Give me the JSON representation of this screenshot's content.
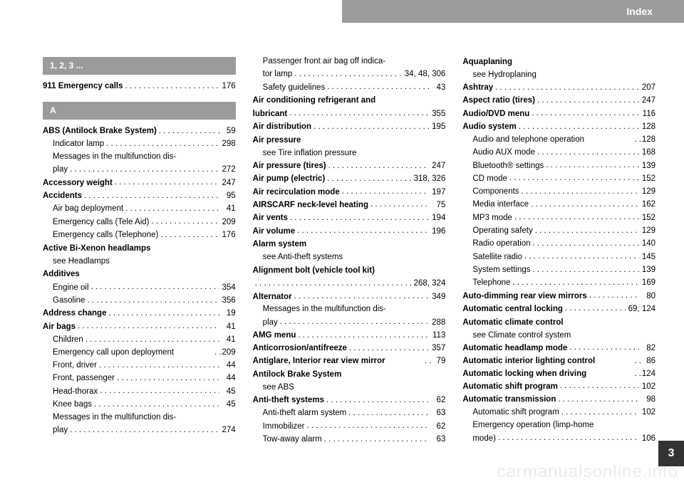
{
  "header": {
    "title": "Index"
  },
  "page_number": "3",
  "watermark": "carmanualsonline.info",
  "sections": {
    "numeric": {
      "title": "1, 2, 3 ..."
    },
    "A": {
      "title": "A"
    }
  },
  "col1": [
    {
      "type": "section",
      "key": "numeric"
    },
    {
      "type": "main",
      "label": "911 Emergency calls",
      "page": "176"
    },
    {
      "type": "gap"
    },
    {
      "type": "section",
      "key": "A"
    },
    {
      "type": "main",
      "label": "ABS (Antilock Brake System)",
      "page": "59"
    },
    {
      "type": "sub",
      "label": "Indicator lamp",
      "page": "298"
    },
    {
      "type": "subtext",
      "label": "Messages in the multifunction dis-"
    },
    {
      "type": "sub",
      "label": "play",
      "page": "272"
    },
    {
      "type": "main",
      "label": "Accessory weight",
      "page": "247"
    },
    {
      "type": "main",
      "label": "Accidents",
      "page": "95"
    },
    {
      "type": "sub",
      "label": "Air bag deployment",
      "page": "41"
    },
    {
      "type": "sub",
      "label": "Emergency calls (Tele Aid)",
      "page": "209"
    },
    {
      "type": "sub",
      "label": "Emergency calls (Telephone)",
      "page": "176"
    },
    {
      "type": "heading",
      "label": "Active Bi-Xenon headlamps"
    },
    {
      "type": "see",
      "label": "see Headlamps"
    },
    {
      "type": "heading",
      "label": "Additives"
    },
    {
      "type": "sub",
      "label": "Engine oil",
      "page": "354"
    },
    {
      "type": "sub",
      "label": "Gasoline",
      "page": "356"
    },
    {
      "type": "main",
      "label": "Address change",
      "page": "19"
    },
    {
      "type": "main",
      "label": "Air bags",
      "page": "41"
    },
    {
      "type": "sub",
      "label": "Children",
      "page": "41"
    },
    {
      "type": "sub",
      "label": "Emergency call upon deployment",
      "page": "209",
      "short": true
    },
    {
      "type": "sub",
      "label": "Front, driver",
      "page": "44"
    },
    {
      "type": "sub",
      "label": "Front, passenger",
      "page": "44"
    },
    {
      "type": "sub",
      "label": "Head-thorax",
      "page": "45"
    },
    {
      "type": "sub",
      "label": "Knee bags",
      "page": "45"
    },
    {
      "type": "subtext",
      "label": "Messages in the multifunction dis-"
    },
    {
      "type": "sub",
      "label": "play",
      "page": "274"
    }
  ],
  "col2": [
    {
      "type": "subtext",
      "label": "Passenger front air bag off indica-"
    },
    {
      "type": "sub",
      "label": "tor lamp",
      "page": "34, 48, 306"
    },
    {
      "type": "sub",
      "label": "Safety guidelines",
      "page": "43"
    },
    {
      "type": "heading",
      "label": "Air conditioning refrigerant and"
    },
    {
      "type": "main",
      "label": "lubricant",
      "page": "355"
    },
    {
      "type": "main",
      "label": "Air distribution",
      "page": "195"
    },
    {
      "type": "heading",
      "label": "Air pressure"
    },
    {
      "type": "see",
      "label": "see Tire inflation pressure"
    },
    {
      "type": "main",
      "label": "Air pressure (tires)",
      "page": "247"
    },
    {
      "type": "main",
      "label": "Air pump (electric)",
      "page": "318, 326"
    },
    {
      "type": "main",
      "label": "Air recirculation mode",
      "page": "197"
    },
    {
      "type": "main",
      "label": "AIRSCARF neck-level heating",
      "page": "75"
    },
    {
      "type": "main",
      "label": "Air vents",
      "page": "194"
    },
    {
      "type": "main",
      "label": "Air volume",
      "page": "196"
    },
    {
      "type": "heading",
      "label": "Alarm system"
    },
    {
      "type": "see",
      "label": "see Anti-theft systems"
    },
    {
      "type": "heading",
      "label": "Alignment bolt (vehicle tool kit)"
    },
    {
      "type": "contdots",
      "page": "268, 324"
    },
    {
      "type": "main",
      "label": "Alternator",
      "page": "349"
    },
    {
      "type": "subtext",
      "label": "Messages in the multifunction dis-"
    },
    {
      "type": "sub",
      "label": "play",
      "page": "288"
    },
    {
      "type": "main",
      "label": "AMG menu",
      "page": "113"
    },
    {
      "type": "main",
      "label": "Anticorrosion/antifreeze",
      "page": "357"
    },
    {
      "type": "main",
      "label": "Antiglare, Interior rear view mirror",
      "page": "79",
      "short": true
    },
    {
      "type": "heading",
      "label": "Antilock Brake System"
    },
    {
      "type": "see",
      "label": "see ABS"
    },
    {
      "type": "main",
      "label": "Anti-theft systems",
      "page": "62"
    },
    {
      "type": "sub",
      "label": "Anti-theft alarm system",
      "page": "63"
    },
    {
      "type": "sub",
      "label": "Immobilizer",
      "page": "62"
    },
    {
      "type": "sub",
      "label": "Tow-away alarm",
      "page": "63"
    }
  ],
  "col3": [
    {
      "type": "heading",
      "label": "Aquaplaning"
    },
    {
      "type": "see",
      "label": "see Hydroplaning"
    },
    {
      "type": "main",
      "label": "Ashtray",
      "page": "207"
    },
    {
      "type": "main",
      "label": "Aspect ratio (tires)",
      "page": "247"
    },
    {
      "type": "main",
      "label": "Audio/DVD menu",
      "page": "116"
    },
    {
      "type": "main",
      "label": "Audio system",
      "page": "128"
    },
    {
      "type": "sub",
      "label": "Audio and telephone operation",
      "page": "128",
      "short": true
    },
    {
      "type": "sub",
      "label": "Audio AUX mode",
      "page": "168"
    },
    {
      "type": "sub",
      "label": "Bluetooth® settings",
      "page": "139"
    },
    {
      "type": "sub",
      "label": "CD mode",
      "page": "152"
    },
    {
      "type": "sub",
      "label": "Components",
      "page": "129"
    },
    {
      "type": "sub",
      "label": "Media interface",
      "page": "162"
    },
    {
      "type": "sub",
      "label": "MP3 mode",
      "page": "152"
    },
    {
      "type": "sub",
      "label": "Operating safety",
      "page": "129"
    },
    {
      "type": "sub",
      "label": "Radio operation",
      "page": "140"
    },
    {
      "type": "sub",
      "label": "Satellite radio",
      "page": "145"
    },
    {
      "type": "sub",
      "label": "System settings",
      "page": "139"
    },
    {
      "type": "sub",
      "label": "Telephone",
      "page": "169"
    },
    {
      "type": "main",
      "label": "Auto-dimming rear view mirrors",
      "page": "80"
    },
    {
      "type": "main",
      "label": "Automatic central locking",
      "page": "69, 124"
    },
    {
      "type": "heading",
      "label": "Automatic climate control"
    },
    {
      "type": "see",
      "label": "see Climate control system"
    },
    {
      "type": "main",
      "label": "Automatic headlamp mode",
      "page": "82"
    },
    {
      "type": "main",
      "label": "Automatic interior lighting control",
      "page": "86",
      "short": true
    },
    {
      "type": "main",
      "label": "Automatic locking when driving",
      "page": "124",
      "short": true
    },
    {
      "type": "main",
      "label": "Automatic shift program",
      "page": "102"
    },
    {
      "type": "main",
      "label": "Automatic transmission",
      "page": "98"
    },
    {
      "type": "sub",
      "label": "Automatic shift program",
      "page": "102"
    },
    {
      "type": "subtext",
      "label": "Emergency operation (limp-home"
    },
    {
      "type": "sub",
      "label": "mode)",
      "page": "106"
    }
  ]
}
